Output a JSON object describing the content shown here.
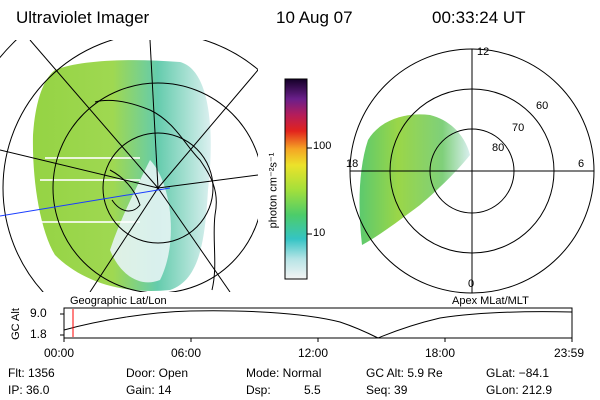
{
  "header": {
    "instrument": "Ultraviolet Imager",
    "date": "10 Aug 07",
    "time": "00:33:24 UT"
  },
  "colorbar": {
    "unit_label": "photon cm⁻²s⁻¹",
    "tick_100": "100",
    "tick_10": "10"
  },
  "polar": {
    "mlt_12": "12",
    "mlt_18": "18",
    "mlt_6": "6",
    "mlt_0": "0",
    "lat_60": "60",
    "lat_70": "70",
    "lat_80": "80"
  },
  "captions": {
    "left": "Geographic Lat/Lon",
    "right": "Apex MLat/MLT"
  },
  "altplot": {
    "ylabel": "GC Alt",
    "ytick_top": "9.0",
    "ytick_bottom": "1.8",
    "xticks": [
      "00:00",
      "06:00",
      "12:00",
      "18:00",
      "23:59"
    ]
  },
  "info": {
    "flt": "Flt: 1356",
    "ip": "IP: 36.0",
    "door": "Door: Open",
    "gain": "Gain: 14",
    "mode": "Mode: Normal",
    "dsp_label": "Dsp:",
    "dsp_value": "5.5",
    "gc_alt": "GC Alt: 5.9 Re",
    "seq": "Seq: 39",
    "glat": "GLat: −84.1",
    "glon": "GLon: 212.9"
  }
}
